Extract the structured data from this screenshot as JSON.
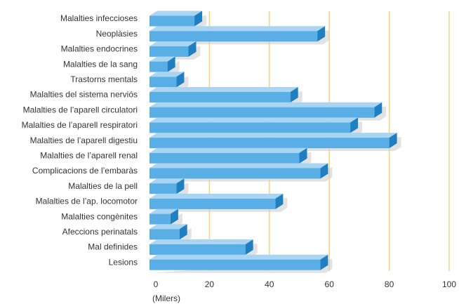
{
  "chart_data": {
    "type": "bar",
    "orientation": "horizontal",
    "categories": [
      "Malalties infeccioses",
      "Neoplàsies",
      "Malalties endocrines",
      "Malalties de la sang",
      "Trastorns mentals",
      "Malalties del sistema nerviós",
      "Malalties de l’aparell circulatori",
      "Malalties de l’aparell respiratori",
      "Malalties de l’aparell digestiu",
      "Malalties de l’aparell renal",
      "Complicacions de l’embaràs",
      "Malalties de la pell",
      "Malalties de l’ap. locomotor",
      "Malalties congènites",
      "Afeccions perinatals",
      "Mal definides",
      "Lesions"
    ],
    "values": [
      15,
      56,
      13,
      6,
      9,
      47,
      75,
      67,
      80,
      50,
      57,
      9,
      42,
      7,
      10,
      32,
      57
    ],
    "color": "#5aaee6",
    "x_label": "(Milers)",
    "xlim": [
      0,
      100
    ],
    "xticks": [
      0,
      20,
      40,
      60,
      80,
      100
    ],
    "grid": true
  }
}
